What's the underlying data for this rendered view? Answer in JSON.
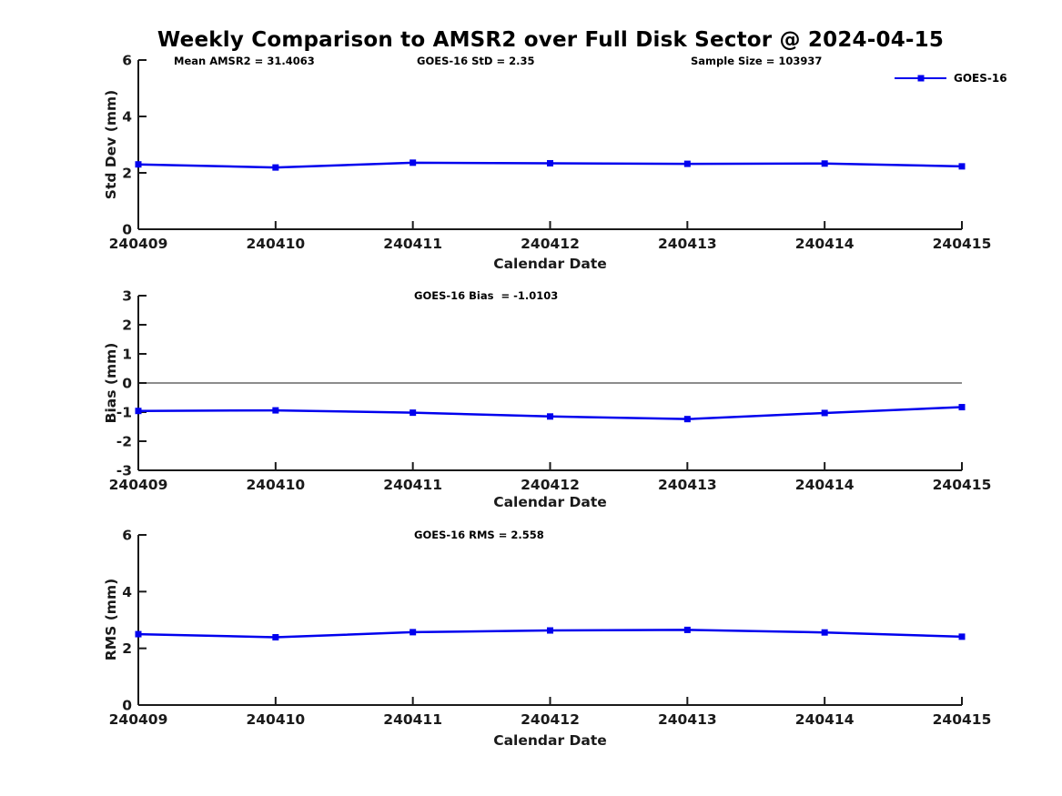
{
  "figure": {
    "title": "Weekly Comparison to AMSR2 over Full Disk Sector @ 2024-04-15"
  },
  "colors": {
    "line": "#0000ee",
    "marker": "#0000ee",
    "zero_line": "#666666",
    "axis": "#1a1a1a",
    "tick_text": "#1a1a1a",
    "background": "#ffffff"
  },
  "legend": {
    "label": "GOES-16",
    "position": "top-right",
    "marker": "filled-square"
  },
  "chart_data": [
    {
      "id": "stddev",
      "type": "line",
      "title": "",
      "annotations": [
        "Mean AMSR2 = 31.4063",
        "GOES-16 StD = 2.35",
        "Sample Size = 103937"
      ],
      "categories": [
        "240409",
        "240410",
        "240411",
        "240412",
        "240413",
        "240414",
        "240415"
      ],
      "series": [
        {
          "name": "GOES-16",
          "values": [
            2.3,
            2.19,
            2.36,
            2.34,
            2.32,
            2.33,
            2.23
          ]
        }
      ],
      "xlabel": "Calendar Date",
      "ylabel": "Std Dev (mm)",
      "ylim": [
        0,
        6
      ],
      "yticks": [
        0,
        2,
        4,
        6
      ],
      "grid": false,
      "zero_line": false,
      "legend": "GOES-16"
    },
    {
      "id": "bias",
      "type": "line",
      "title": "",
      "annotations": [
        "GOES-16 Bias  = -1.0103"
      ],
      "categories": [
        "240409",
        "240410",
        "240411",
        "240412",
        "240413",
        "240414",
        "240415"
      ],
      "series": [
        {
          "name": "GOES-16",
          "values": [
            -0.96,
            -0.94,
            -1.02,
            -1.15,
            -1.24,
            -1.03,
            -0.83
          ]
        }
      ],
      "xlabel": "Calendar Date",
      "ylabel": "Bias (mm)",
      "ylim": [
        -3,
        3
      ],
      "yticks": [
        -3,
        -2,
        -1,
        0,
        1,
        2,
        3
      ],
      "grid": false,
      "zero_line": true,
      "legend": null
    },
    {
      "id": "rms",
      "type": "line",
      "title": "",
      "annotations": [
        "GOES-16 RMS = 2.558"
      ],
      "categories": [
        "240409",
        "240410",
        "240411",
        "240412",
        "240413",
        "240414",
        "240415"
      ],
      "series": [
        {
          "name": "GOES-16",
          "values": [
            2.5,
            2.39,
            2.57,
            2.63,
            2.65,
            2.56,
            2.41
          ]
        }
      ],
      "xlabel": "Calendar Date",
      "ylabel": "RMS (mm)",
      "ylim": [
        0,
        6
      ],
      "yticks": [
        0,
        2,
        4,
        6
      ],
      "grid": false,
      "zero_line": false,
      "legend": null
    }
  ]
}
